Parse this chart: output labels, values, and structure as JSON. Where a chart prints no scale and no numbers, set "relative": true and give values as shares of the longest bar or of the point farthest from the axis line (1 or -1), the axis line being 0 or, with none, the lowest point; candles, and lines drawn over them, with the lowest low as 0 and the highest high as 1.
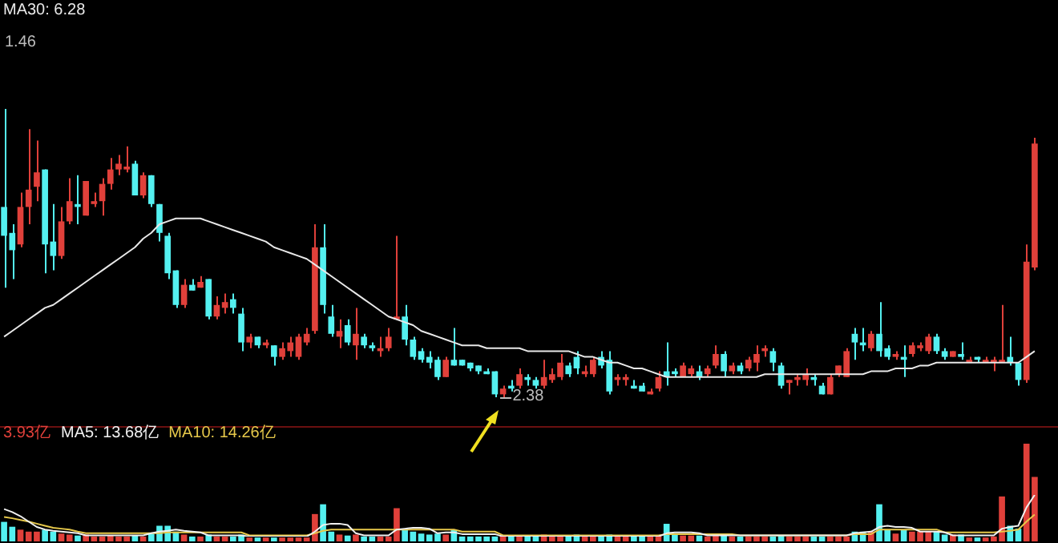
{
  "chart_data": [
    {
      "type": "candlestick",
      "relative": true,
      "legend": "top left",
      "categories": [
        null,
        null,
        null,
        null,
        null,
        null,
        null,
        null,
        null,
        null,
        null,
        null,
        null,
        null,
        null,
        null,
        null,
        null,
        null,
        null,
        null,
        null,
        null,
        null,
        null,
        null,
        null,
        null,
        null,
        null,
        null,
        null,
        null,
        null,
        null,
        null,
        null,
        null,
        null,
        null,
        null,
        null,
        null,
        null,
        null,
        null,
        null,
        null,
        null,
        null,
        null,
        null,
        null,
        null,
        null,
        null,
        null,
        null,
        null,
        null,
        null,
        null,
        null,
        null,
        null,
        null,
        null,
        null,
        null,
        null,
        null,
        null,
        null,
        null,
        null,
        null,
        null,
        null,
        null,
        null,
        null,
        null,
        null,
        null,
        null,
        null,
        null,
        null,
        null,
        null,
        null,
        null,
        null,
        null,
        null,
        null,
        null,
        null,
        null,
        null,
        null,
        null,
        null,
        null,
        null,
        null,
        null,
        null,
        null,
        null,
        null,
        null,
        null,
        null,
        null,
        null,
        null,
        null,
        null,
        null,
        null,
        null,
        null,
        null,
        null,
        null,
        null
      ],
      "ohlc": [
        [
          0.66,
          1,
          0.38,
          0.56
        ],
        [
          0.57,
          0.6,
          0.41,
          0.51
        ],
        [
          0.53,
          0.71,
          0.52,
          0.66
        ],
        [
          0.66,
          0.93,
          0.6,
          0.72
        ],
        [
          0.73,
          0.89,
          0.68,
          0.78
        ],
        [
          0.79,
          0.79,
          0.43,
          0.53
        ],
        [
          0.54,
          0.67,
          0.44,
          0.49
        ],
        [
          0.49,
          0.66,
          0.48,
          0.61
        ],
        [
          0.61,
          0.76,
          0.6,
          0.68
        ],
        [
          0.67,
          0.77,
          0.6,
          0.66
        ],
        [
          0.63,
          0.75,
          0.63,
          0.75
        ],
        [
          0.67,
          0.71,
          0.66,
          0.68
        ],
        [
          0.68,
          0.76,
          0.63,
          0.74
        ],
        [
          0.74,
          0.83,
          0.72,
          0.79
        ],
        [
          0.79,
          0.84,
          0.77,
          0.81
        ],
        [
          0.79,
          0.87,
          0.78,
          0.8
        ],
        [
          0.81,
          0.82,
          0.7,
          0.7
        ],
        [
          0.7,
          0.78,
          0.69,
          0.77
        ],
        [
          0.77,
          0.77,
          0.66,
          0.67
        ],
        [
          0.67,
          0.67,
          0.54,
          0.57
        ],
        [
          0.56,
          0.57,
          0.41,
          0.43
        ],
        [
          0.44,
          0.44,
          0.31,
          0.32
        ],
        [
          0.32,
          0.41,
          0.31,
          0.39
        ],
        [
          0.39,
          0.41,
          0.37,
          0.37
        ],
        [
          0.38,
          0.42,
          0.38,
          0.4
        ],
        [
          0.41,
          0.41,
          0.27,
          0.28
        ],
        [
          0.28,
          0.35,
          0.27,
          0.32
        ],
        [
          0.31,
          0.36,
          0.29,
          0.33
        ],
        [
          0.34,
          0.36,
          0.29,
          0.31
        ],
        [
          0.29,
          0.31,
          0.16,
          0.19
        ],
        [
          0.19,
          0.22,
          0.17,
          0.21
        ],
        [
          0.21,
          0.21,
          0.17,
          0.18
        ],
        [
          0.18,
          0.2,
          0.17,
          0.19
        ],
        [
          0.18,
          0.18,
          0.11,
          0.14
        ],
        [
          0.14,
          0.19,
          0.13,
          0.17
        ],
        [
          0.16,
          0.21,
          0.14,
          0.19
        ],
        [
          0.14,
          0.22,
          0.13,
          0.21
        ],
        [
          0.19,
          0.24,
          0.18,
          0.22
        ],
        [
          0.23,
          0.6,
          0.22,
          0.52
        ],
        [
          0.52,
          0.6,
          0.29,
          0.32
        ],
        [
          0.28,
          0.32,
          0.21,
          0.22
        ],
        [
          0.21,
          0.27,
          0.17,
          0.23
        ],
        [
          0.25,
          0.27,
          0.18,
          0.19
        ],
        [
          0.18,
          0.31,
          0.13,
          0.22
        ],
        [
          0.21,
          0.22,
          0.17,
          0.18
        ],
        [
          0.18,
          0.19,
          0.16,
          0.17
        ],
        [
          0.16,
          0.21,
          0.14,
          0.17
        ],
        [
          0.17,
          0.24,
          0.16,
          0.21
        ],
        [
          0.27,
          0.56,
          0.27,
          0.28
        ],
        [
          0.28,
          0.32,
          0.18,
          0.2
        ],
        [
          0.2,
          0.21,
          0.13,
          0.14
        ],
        [
          0.16,
          0.17,
          0.12,
          0.13
        ],
        [
          0.14,
          0.16,
          0.1,
          0.12
        ],
        [
          0.13,
          0.14,
          0.06,
          0.07
        ],
        [
          0.07,
          0.14,
          0.07,
          0.13
        ],
        [
          0.13,
          0.24,
          0.11,
          0.11
        ],
        [
          0.13,
          0.13,
          0.11,
          0.11
        ],
        [
          0.12,
          0.12,
          0.09,
          0.1
        ],
        [
          0.11,
          0.11,
          0.08,
          0.09
        ],
        [
          0.09,
          0.1,
          0.08,
          0.08
        ],
        [
          0.09,
          0.09,
          0,
          0.01
        ],
        [
          0.01,
          0.04,
          0,
          0.03
        ],
        [
          0.04,
          0.06,
          0.02,
          0.03
        ],
        [
          0.04,
          0.1,
          0.03,
          0.08
        ],
        [
          0.07,
          0.08,
          0.04,
          0.06
        ],
        [
          0.06,
          0.07,
          0.03,
          0.04
        ],
        [
          0.04,
          0.13,
          0.03,
          0.07
        ],
        [
          0.06,
          0.1,
          0.05,
          0.08
        ],
        [
          0.07,
          0.15,
          0.06,
          0.12
        ],
        [
          0.11,
          0.12,
          0.07,
          0.08
        ],
        [
          0.14,
          0.16,
          0.08,
          0.1
        ],
        [
          0.08,
          0.11,
          0.07,
          0.09
        ],
        [
          0.08,
          0.14,
          0.07,
          0.13
        ],
        [
          0.14,
          0.16,
          0.1,
          0.11
        ],
        [
          0.13,
          0.16,
          0.01,
          0.02
        ],
        [
          0.06,
          0.08,
          0.04,
          0.07
        ],
        [
          0.06,
          0.08,
          0.04,
          0.07
        ],
        [
          0.04,
          0.06,
          0.03,
          0.03
        ],
        [
          0.04,
          0.05,
          0.02,
          0.02
        ],
        [
          0.01,
          0.03,
          0.01,
          0.02
        ],
        [
          0.03,
          0.09,
          0.02,
          0.07
        ],
        [
          0.09,
          0.19,
          0.04,
          0.07
        ],
        [
          0.09,
          0.1,
          0.07,
          0.08
        ],
        [
          0.07,
          0.12,
          0.07,
          0.11
        ],
        [
          0.08,
          0.11,
          0.07,
          0.1
        ],
        [
          0.09,
          0.11,
          0.06,
          0.07
        ],
        [
          0.08,
          0.11,
          0.07,
          0.1
        ],
        [
          0.11,
          0.18,
          0.1,
          0.15
        ],
        [
          0.15,
          0.16,
          0.07,
          0.09
        ],
        [
          0.09,
          0.12,
          0.08,
          0.11
        ],
        [
          0.11,
          0.12,
          0.08,
          0.09
        ],
        [
          0.1,
          0.14,
          0.09,
          0.13
        ],
        [
          0.12,
          0.18,
          0.09,
          0.15
        ],
        [
          0.16,
          0.18,
          0.14,
          0.17
        ],
        [
          0.16,
          0.17,
          0.09,
          0.12
        ],
        [
          0.11,
          0.12,
          0.03,
          0.04
        ],
        [
          0.05,
          0.06,
          0.01,
          0.06
        ],
        [
          0.06,
          0.08,
          0.04,
          0.07
        ],
        [
          0.06,
          0.1,
          0.04,
          0.08
        ],
        [
          0.07,
          0.08,
          0.04,
          0.06
        ],
        [
          0.04,
          0.05,
          0.01,
          0.01
        ],
        [
          0.01,
          0.08,
          0.01,
          0.07
        ],
        [
          0.08,
          0.11,
          0.07,
          0.11
        ],
        [
          0.07,
          0.17,
          0.07,
          0.16
        ],
        [
          0.22,
          0.24,
          0.13,
          0.19
        ],
        [
          0.19,
          0.24,
          0.16,
          0.18
        ],
        [
          0.17,
          0.23,
          0.16,
          0.22
        ],
        [
          0.22,
          0.33,
          0.14,
          0.16
        ],
        [
          0.17,
          0.18,
          0.13,
          0.14
        ],
        [
          0.14,
          0.16,
          0.13,
          0.15
        ],
        [
          0.14,
          0.18,
          0.07,
          0.13
        ],
        [
          0.15,
          0.19,
          0.14,
          0.18
        ],
        [
          0.17,
          0.19,
          0.16,
          0.18
        ],
        [
          0.16,
          0.22,
          0.15,
          0.21
        ],
        [
          0.21,
          0.22,
          0.15,
          0.16
        ],
        [
          0.16,
          0.17,
          0.13,
          0.14
        ],
        [
          0.14,
          0.16,
          0.14,
          0.16
        ],
        [
          0.15,
          0.19,
          0.13,
          0.14
        ],
        [
          0.12,
          0.14,
          0.12,
          0.13
        ],
        [
          0.14,
          0.14,
          0.12,
          0.13
        ],
        [
          0.12,
          0.14,
          0.12,
          0.13
        ],
        [
          0.12,
          0.14,
          0.09,
          0.13
        ],
        [
          0.12,
          0.32,
          0.12,
          0.13
        ],
        [
          0.14,
          0.21,
          0.11,
          0.12
        ],
        [
          0.12,
          0.12,
          0.04,
          0.06
        ],
        [
          0.06,
          0.53,
          0.05,
          0.47
        ],
        [
          0.45,
          0.9,
          0.44,
          0.88
        ]
      ],
      "series": [
        {
          "name": "MA30: 6.28",
          "type": "line",
          "color": "#e8e8e8",
          "values": [
            0.21,
            0.23,
            0.25,
            0.27,
            0.29,
            0.31,
            0.32,
            0.34,
            0.36,
            0.38,
            0.4,
            0.42,
            0.44,
            0.46,
            0.48,
            0.5,
            0.52,
            0.55,
            0.57,
            0.6,
            0.61,
            0.62,
            0.62,
            0.62,
            0.62,
            0.61,
            0.6,
            0.59,
            0.58,
            0.57,
            0.56,
            0.55,
            0.54,
            0.52,
            0.51,
            0.5,
            0.49,
            0.48,
            0.46,
            0.44,
            0.42,
            0.4,
            0.38,
            0.36,
            0.34,
            0.32,
            0.3,
            0.28,
            0.27,
            0.26,
            0.25,
            0.23,
            0.22,
            0.21,
            0.2,
            0.19,
            0.18,
            0.18,
            0.18,
            0.17,
            0.17,
            0.17,
            0.17,
            0.17,
            0.16,
            0.16,
            0.16,
            0.16,
            0.16,
            0.16,
            0.15,
            0.14,
            0.14,
            0.13,
            0.12,
            0.12,
            0.11,
            0.1,
            0.1,
            0.09,
            0.08,
            0.07,
            0.07,
            0.07,
            0.07,
            0.07,
            0.07,
            0.07,
            0.07,
            0.07,
            0.07,
            0.07,
            0.07,
            0.08,
            0.08,
            0.08,
            0.08,
            0.08,
            0.08,
            0.08,
            0.08,
            0.08,
            0.08,
            0.08,
            0.08,
            0.08,
            0.09,
            0.09,
            0.09,
            0.1,
            0.1,
            0.1,
            0.11,
            0.11,
            0.12,
            0.12,
            0.12,
            0.12,
            0.12,
            0.12,
            0.12,
            0.12,
            0.12,
            0.12,
            0.12,
            0.14,
            0.16
          ]
        }
      ],
      "annotations": [
        "1.46",
        "2.38"
      ]
    },
    {
      "type": "bar",
      "relative": true,
      "annotations": [
        "3.93亿"
      ],
      "categories": [
        null,
        null,
        null,
        null,
        null,
        null,
        null,
        null,
        null,
        null,
        null,
        null,
        null,
        null,
        null,
        null,
        null,
        null,
        null,
        null,
        null,
        null,
        null,
        null,
        null,
        null,
        null,
        null,
        null,
        null,
        null,
        null,
        null,
        null,
        null,
        null,
        null,
        null,
        null,
        null,
        null,
        null,
        null,
        null,
        null,
        null,
        null,
        null,
        null,
        null,
        null,
        null,
        null,
        null,
        null,
        null,
        null,
        null,
        null,
        null,
        null,
        null,
        null,
        null,
        null,
        null,
        null,
        null,
        null,
        null,
        null,
        null,
        null,
        null,
        null,
        null,
        null,
        null,
        null,
        null,
        null,
        null,
        null,
        null,
        null,
        null,
        null,
        null,
        null,
        null,
        null,
        null,
        null,
        null,
        null,
        null,
        null,
        null,
        null,
        null,
        null,
        null,
        null,
        null,
        null,
        null,
        null,
        null,
        null,
        null,
        null,
        null,
        null,
        null,
        null,
        null,
        null,
        null,
        null,
        null,
        null,
        null,
        null,
        null,
        null,
        null,
        null
      ],
      "series": [
        {
          "type": "bar",
          "colors": [
            "#54f0f0",
            "#54f0f0",
            "#e0403a",
            "#e0403a",
            "#e0403a",
            "#54f0f0",
            "#54f0f0",
            "#e0403a",
            "#e0403a",
            "#54f0f0",
            "#e0403a",
            "#e0403a",
            "#e0403a",
            "#e0403a",
            "#e0403a",
            "#e0403a",
            "#54f0f0",
            "#e0403a",
            "#54f0f0",
            "#54f0f0",
            "#54f0f0",
            "#54f0f0",
            "#e0403a",
            "#54f0f0",
            "#e0403a",
            "#54f0f0",
            "#e0403a",
            "#e0403a",
            "#54f0f0",
            "#54f0f0",
            "#e0403a",
            "#54f0f0",
            "#e0403a",
            "#54f0f0",
            "#e0403a",
            "#e0403a",
            "#e0403a",
            "#e0403a",
            "#e0403a",
            "#54f0f0",
            "#54f0f0",
            "#e0403a",
            "#54f0f0",
            "#e0403a",
            "#54f0f0",
            "#54f0f0",
            "#e0403a",
            "#e0403a",
            "#e0403a",
            "#54f0f0",
            "#54f0f0",
            "#54f0f0",
            "#54f0f0",
            "#54f0f0",
            "#e0403a",
            "#54f0f0",
            "#54f0f0",
            "#54f0f0",
            "#54f0f0",
            "#54f0f0",
            "#54f0f0",
            "#e0403a",
            "#54f0f0",
            "#e0403a",
            "#54f0f0",
            "#54f0f0",
            "#e0403a",
            "#e0403a",
            "#e0403a",
            "#54f0f0",
            "#54f0f0",
            "#e0403a",
            "#e0403a",
            "#54f0f0",
            "#54f0f0",
            "#e0403a",
            "#e0403a",
            "#54f0f0",
            "#54f0f0",
            "#e0403a",
            "#e0403a",
            "#54f0f0",
            "#54f0f0",
            "#e0403a",
            "#e0403a",
            "#54f0f0",
            "#e0403a",
            "#e0403a",
            "#54f0f0",
            "#e0403a",
            "#54f0f0",
            "#e0403a",
            "#e0403a",
            "#e0403a",
            "#54f0f0",
            "#54f0f0",
            "#e0403a",
            "#e0403a",
            "#e0403a",
            "#54f0f0",
            "#54f0f0",
            "#e0403a",
            "#e0403a",
            "#e0403a",
            "#54f0f0",
            "#54f0f0",
            "#e0403a",
            "#54f0f0",
            "#54f0f0",
            "#e0403a",
            "#54f0f0",
            "#e0403a",
            "#e0403a",
            "#e0403a",
            "#54f0f0",
            "#54f0f0",
            "#e0403a",
            "#54f0f0",
            "#e0403a",
            "#54f0f0",
            "#e0403a",
            "#e0403a",
            "#e0403a",
            "#54f0f0",
            "#54f0f0",
            "#e0403a",
            "#e0403a"
          ],
          "values": [
            0.2,
            0.15,
            0.12,
            0.1,
            0.1,
            0.12,
            0.1,
            0.08,
            0.07,
            0.06,
            0.07,
            0.05,
            0.05,
            0.06,
            0.05,
            0.05,
            0.06,
            0.05,
            0.08,
            0.16,
            0.16,
            0.1,
            0.07,
            0.05,
            0.05,
            0.07,
            0.05,
            0.05,
            0.05,
            0.07,
            0.04,
            0.04,
            0.04,
            0.04,
            0.04,
            0.04,
            0.04,
            0.04,
            0.28,
            0.38,
            0.1,
            0.07,
            0.06,
            0.07,
            0.05,
            0.05,
            0.05,
            0.05,
            0.34,
            0.13,
            0.1,
            0.08,
            0.07,
            0.08,
            0.07,
            0.12,
            0.05,
            0.05,
            0.05,
            0.05,
            0.05,
            0.06,
            0.05,
            0.06,
            0.05,
            0.05,
            0.07,
            0.05,
            0.05,
            0.05,
            0.07,
            0.05,
            0.05,
            0.05,
            0.07,
            0.05,
            0.05,
            0.05,
            0.05,
            0.05,
            0.05,
            0.18,
            0.08,
            0.06,
            0.06,
            0.06,
            0.05,
            0.08,
            0.07,
            0.05,
            0.05,
            0.05,
            0.05,
            0.05,
            0.05,
            0.06,
            0.05,
            0.05,
            0.05,
            0.05,
            0.05,
            0.05,
            0.05,
            0.05,
            0.1,
            0.1,
            0.1,
            0.38,
            0.12,
            0.08,
            0.12,
            0.1,
            0.1,
            0.1,
            0.1,
            0.07,
            0.07,
            0.07,
            0.04,
            0.04,
            0.04,
            0.05,
            0.46,
            0.16,
            0.13,
            1,
            0.66
          ]
        }
      ]
    },
    {
      "type": "line",
      "relative": true,
      "annotations": [
        "MA5: 13.68亿",
        "MA10: 14.26亿"
      ],
      "categories": [
        null,
        null,
        null,
        null,
        null,
        null,
        null,
        null,
        null,
        null,
        null,
        null,
        null,
        null,
        null,
        null,
        null,
        null,
        null,
        null,
        null,
        null,
        null,
        null,
        null,
        null,
        null,
        null,
        null,
        null,
        null,
        null,
        null,
        null,
        null,
        null,
        null,
        null,
        null,
        null,
        null,
        null,
        null,
        null,
        null,
        null,
        null,
        null,
        null,
        null,
        null,
        null,
        null,
        null,
        null,
        null,
        null,
        null,
        null,
        null,
        null,
        null,
        null,
        null,
        null,
        null,
        null,
        null,
        null,
        null,
        null,
        null,
        null,
        null,
        null,
        null,
        null,
        null,
        null,
        null,
        null,
        null,
        null,
        null,
        null,
        null,
        null,
        null,
        null,
        null,
        null,
        null,
        null,
        null,
        null,
        null,
        null,
        null,
        null,
        null,
        null,
        null,
        null,
        null,
        null,
        null,
        null,
        null,
        null,
        null,
        null,
        null,
        null,
        null,
        null,
        null,
        null,
        null,
        null,
        null,
        null,
        null,
        null,
        null,
        null,
        null,
        null
      ],
      "series": [
        {
          "type": "line",
          "color": "#f0f0f0",
          "values": [
            0.66,
            0.59,
            0.49,
            0.36,
            0.23,
            0.17,
            0.14,
            0.12,
            0.1,
            0.08,
            0.03,
            0.03,
            0.03,
            0.03,
            0.03,
            0.03,
            0.03,
            0.03,
            0.08,
            0.12,
            0.14,
            0.17,
            0.14,
            0.12,
            0.1,
            0.03,
            0.03,
            0.03,
            0.03,
            0.03,
            0,
            0,
            0,
            0,
            0,
            0,
            0,
            0,
            0.12,
            0.28,
            0.31,
            0.31,
            0.28,
            0.08,
            0.03,
            0.03,
            0.03,
            0.03,
            0.17,
            0.19,
            0.21,
            0.21,
            0.19,
            0.08,
            0.1,
            0.1,
            0.06,
            0.06,
            0.06,
            0.06,
            0.06,
            0,
            0,
            0,
            0,
            0,
            0,
            0,
            0,
            0,
            0,
            0,
            0,
            0,
            0,
            0,
            0,
            0,
            0,
            0,
            0,
            0.08,
            0.1,
            0.1,
            0.1,
            0.08,
            0.03,
            0.03,
            0.03,
            0.03,
            0.03,
            0.03,
            0.03,
            0.03,
            0.03,
            0.03,
            0.03,
            0.03,
            0.03,
            0.03,
            0.03,
            0.03,
            0.03,
            0.03,
            0.08,
            0.1,
            0.12,
            0.23,
            0.26,
            0.23,
            0.23,
            0.21,
            0.12,
            0.12,
            0.12,
            0.1,
            0.03,
            0.03,
            0.03,
            0.03,
            0.03,
            0.03,
            0.19,
            0.23,
            0.26,
            0.7,
            1
          ]
        },
        {
          "type": "line",
          "color": "#e6c84a",
          "values": [
            0.47,
            0.44,
            0.4,
            0.36,
            0.31,
            0.26,
            0.21,
            0.19,
            0.17,
            0.12,
            0.08,
            0.08,
            0.08,
            0.08,
            0.08,
            0.08,
            0.08,
            0.08,
            0.08,
            0.08,
            0.1,
            0.1,
            0.1,
            0.1,
            0.1,
            0.1,
            0.1,
            0.1,
            0.1,
            0.1,
            0.03,
            0.03,
            0.03,
            0.03,
            0.03,
            0.03,
            0.03,
            0.03,
            0.08,
            0.14,
            0.17,
            0.17,
            0.17,
            0.17,
            0.17,
            0.17,
            0.17,
            0.17,
            0.17,
            0.17,
            0.17,
            0.17,
            0.17,
            0.17,
            0.17,
            0.17,
            0.12,
            0.12,
            0.12,
            0.12,
            0.12,
            0.03,
            0.03,
            0.03,
            0.03,
            0.03,
            0.03,
            0.03,
            0.03,
            0.03,
            0.03,
            0.03,
            0.03,
            0.03,
            0.03,
            0.03,
            0.03,
            0.03,
            0.03,
            0.03,
            0.03,
            0.06,
            0.06,
            0.06,
            0.06,
            0.06,
            0.06,
            0.06,
            0.06,
            0.06,
            0.03,
            0.03,
            0.03,
            0.03,
            0.03,
            0.03,
            0.03,
            0.03,
            0.03,
            0.03,
            0.03,
            0.03,
            0.03,
            0.03,
            0.06,
            0.06,
            0.06,
            0.17,
            0.17,
            0.17,
            0.17,
            0.17,
            0.17,
            0.17,
            0.17,
            0.1,
            0.1,
            0.1,
            0.1,
            0.1,
            0.1,
            0.1,
            0.12,
            0.14,
            0.17,
            0.36,
            0.53
          ]
        }
      ]
    }
  ]
}
